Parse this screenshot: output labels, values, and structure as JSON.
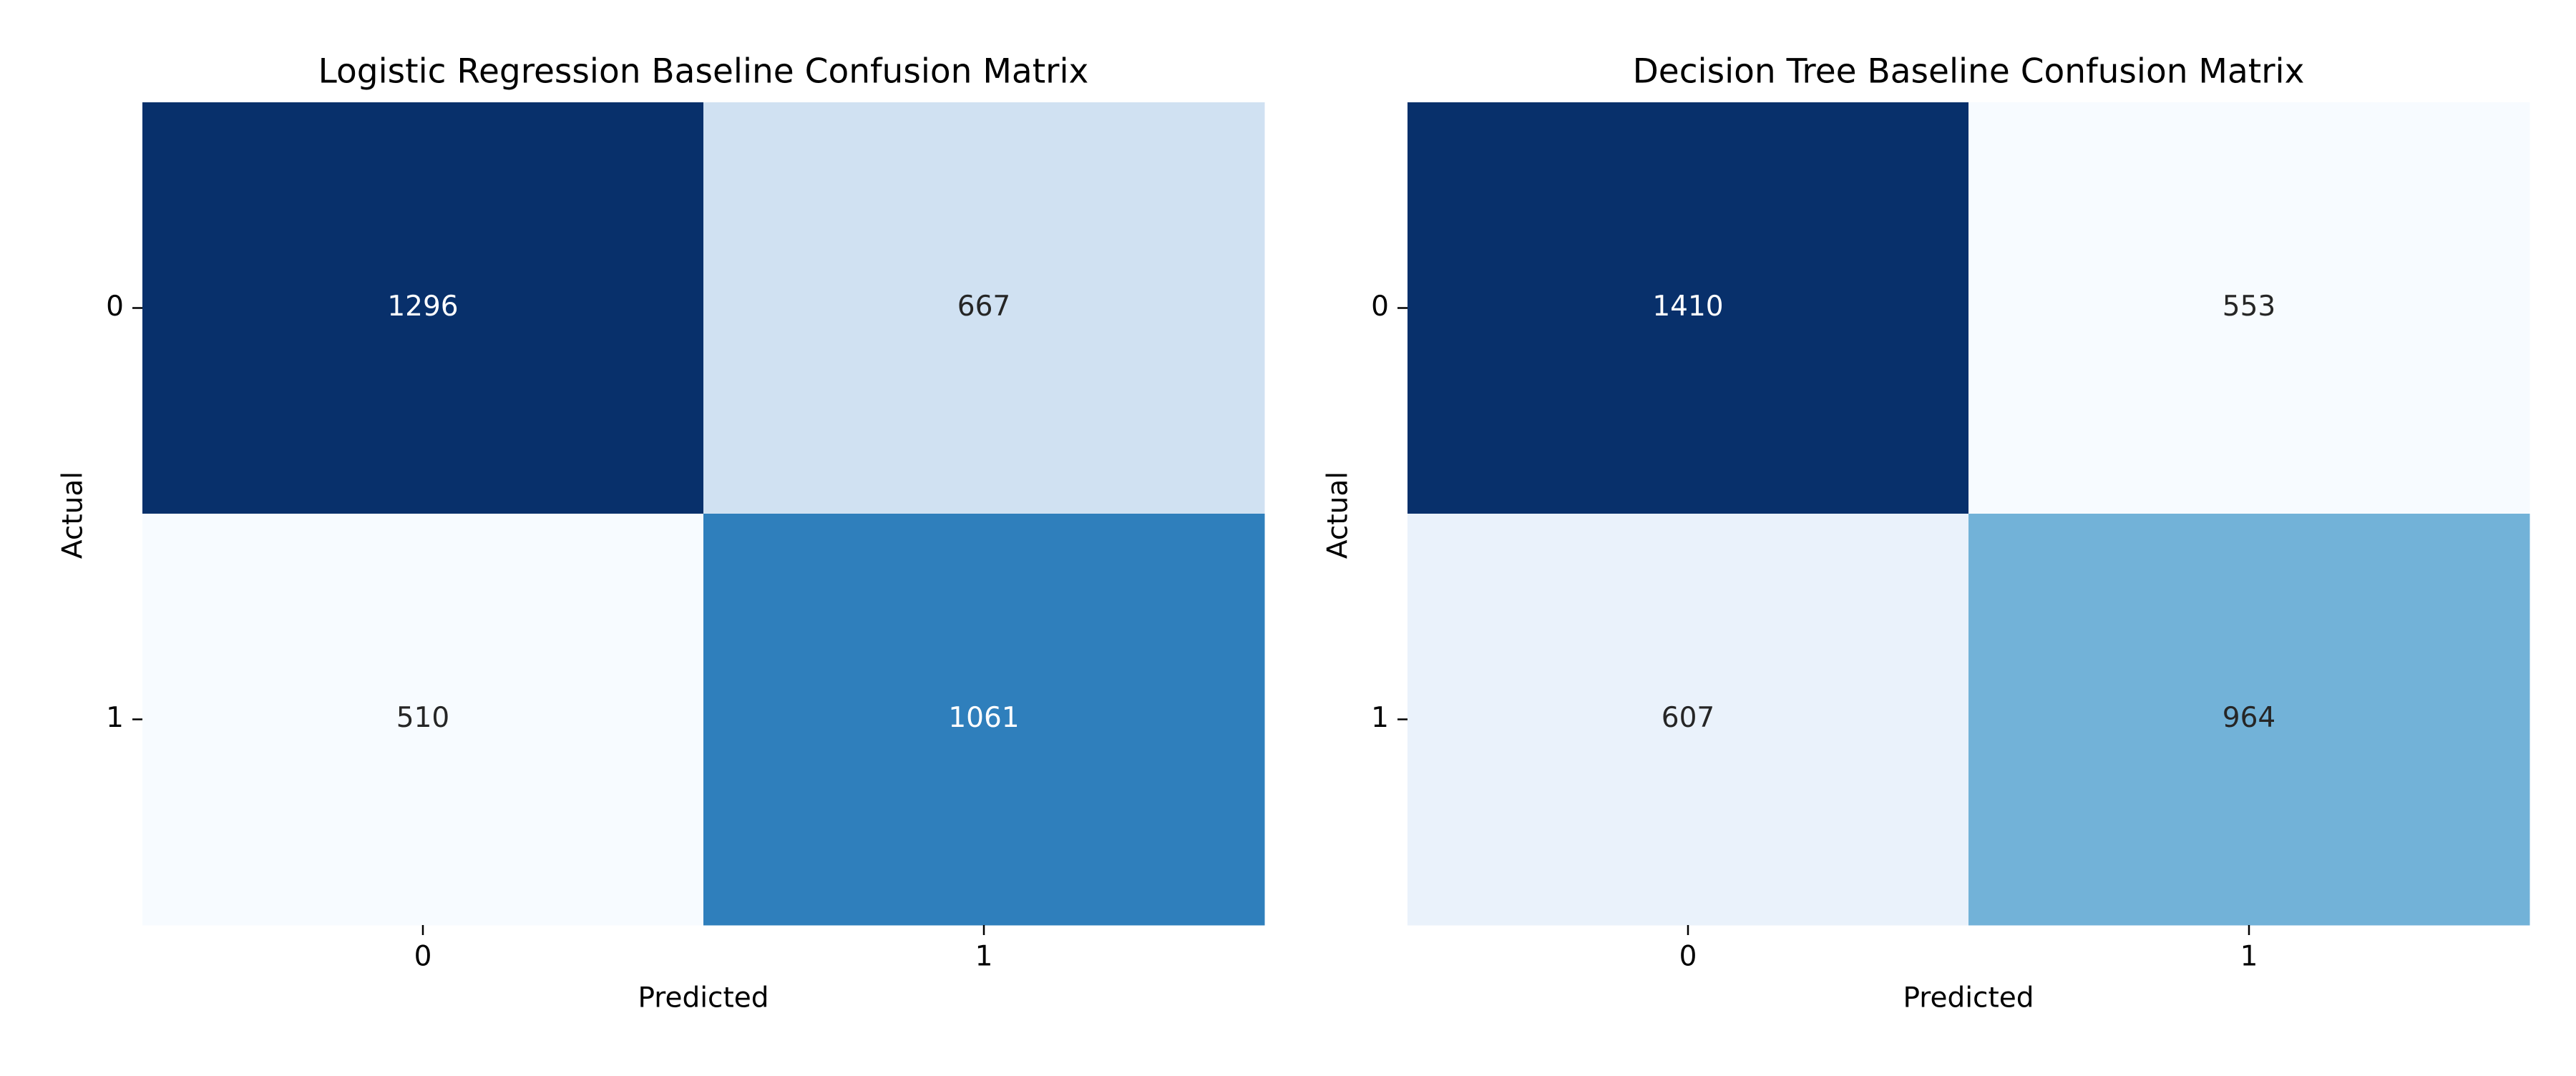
{
  "chart_data": [
    {
      "type": "heatmap",
      "title": "Logistic Regression Baseline Confusion Matrix",
      "xlabel": "Predicted",
      "ylabel": "Actual",
      "x_categories": [
        "0",
        "1"
      ],
      "y_categories": [
        "0",
        "1"
      ],
      "values": [
        [
          1296,
          667
        ],
        [
          510,
          1061
        ]
      ],
      "colormap": "Blues",
      "colorbar": false,
      "cell_colors": [
        [
          "#08306b",
          "#d0e1f2"
        ],
        [
          "#f7fbff",
          "#2f7fbc"
        ]
      ]
    },
    {
      "type": "heatmap",
      "title": "Decision Tree Baseline Confusion Matrix",
      "xlabel": "Predicted",
      "ylabel": "Actual",
      "x_categories": [
        "0",
        "1"
      ],
      "y_categories": [
        "0",
        "1"
      ],
      "values": [
        [
          1410,
          553
        ],
        [
          607,
          964
        ]
      ],
      "colormap": "Blues",
      "colorbar": false,
      "cell_colors": [
        [
          "#08306b",
          "#f7fbff"
        ],
        [
          "#eaf2fb",
          "#72b2d8"
        ]
      ]
    }
  ]
}
